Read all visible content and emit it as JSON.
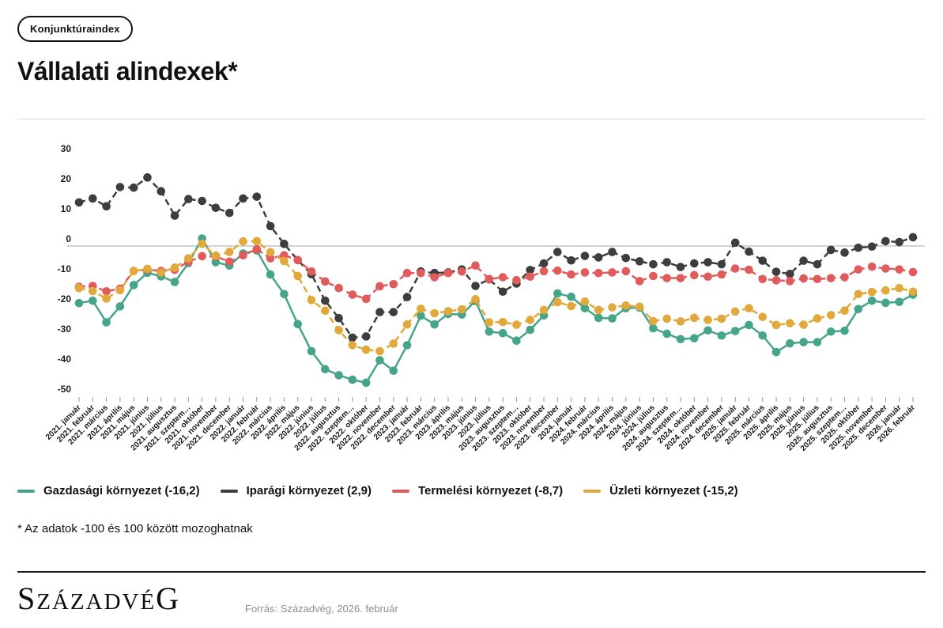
{
  "badge": {
    "label": "Konjunktúraindex"
  },
  "header": {
    "title": "Vállalati alindexek*"
  },
  "footnote": "* Az adatok -100 és 100 között mozoghatnak",
  "footer": {
    "logo_first": "S",
    "logo_mid": "ZÁZADVÉ",
    "logo_last": "G",
    "source": "Forrás: Századvég, 2026. február"
  },
  "colors": {
    "zero_line": "#b8b8b8",
    "tick_mark": "#999999",
    "axis_text": "#1a1a1a"
  },
  "chart_data": {
    "type": "line",
    "title": "Vállalati alindexek*",
    "ylim": [
      -50,
      30
    ],
    "yticks": [
      30,
      20,
      10,
      0,
      -10,
      -20,
      -30,
      -40,
      -50
    ],
    "grid": "zero-line-only",
    "legend_position": "bottom",
    "x": [
      "2021. január",
      "2021. február",
      "2021. március",
      "2021. április",
      "2021. május",
      "2021. június",
      "2021. július",
      "2021. augusztus",
      "2021. szeptem…",
      "2021. október",
      "2021. november",
      "2021. december",
      "2022. január",
      "2022. február",
      "2022. március",
      "2022. április",
      "2022. május",
      "2022. június",
      "2022. július",
      "2022. augusztus",
      "2022. szeptem…",
      "2022. október",
      "2022. november",
      "2022. december",
      "2023. január",
      "2023. február",
      "2023. március",
      "2023. április",
      "2023. május",
      "2023. június",
      "2023. július",
      "2023. augusztus",
      "2023. szeptem…",
      "2023. október",
      "2023. november",
      "2023. december",
      "2024. január",
      "2024. február",
      "2024. március",
      "2024. április",
      "2024. május",
      "2024. június",
      "2024. július",
      "2024. augusztus",
      "2024. szeptem…",
      "2024. október",
      "2024. november",
      "2024. december",
      "2025. január",
      "2025. február",
      "2025. március",
      "2025. április",
      "2025. május",
      "2025. június",
      "2025. július",
      "2025. augusztus",
      "2025. szeptem…",
      "2025. október",
      "2025. november",
      "2025. december",
      "2026. január",
      "2026. február"
    ],
    "series": [
      {
        "name": "Gazdasági környezet (-16,2)",
        "slug": "gazdasagi-kornyezet",
        "color": "#45A489",
        "dash": false,
        "values": [
          -19,
          -18.2,
          -25.4,
          -20.1,
          -13,
          -8.9,
          -10.1,
          -12,
          -5.7,
          2.5,
          -5.4,
          -6.5,
          -2.5,
          -1.5,
          -9.5,
          -16,
          -26,
          -35,
          -41,
          -43,
          -44.5,
          -45.5,
          -38,
          -41.5,
          -33,
          -23.2,
          -26.1,
          -22.6,
          -22.8,
          -18.3,
          -28.5,
          -29,
          -31.5,
          -27.9,
          -23.1,
          -15.8,
          -16.9,
          -20.7,
          -23.9,
          -24.1,
          -20.7,
          -20.5,
          -27.4,
          -29.2,
          -31,
          -30.7,
          -28.1,
          -29.8,
          -28.3,
          -26.3,
          -29.8,
          -35.3,
          -32.4,
          -32,
          -32,
          -28.5,
          -28.2,
          -21,
          -18.2,
          -18.9,
          -18.6,
          -16.2
        ]
      },
      {
        "name": "Iparági környezet (2,9)",
        "slug": "iparagi-kornyezet",
        "color": "#3D3D3D",
        "dash": true,
        "values": [
          14.5,
          15.8,
          13.2,
          19.6,
          19.4,
          22.8,
          18.2,
          10.1,
          15.6,
          15,
          12.7,
          11,
          15.8,
          16.4,
          6.6,
          0.7,
          -4.7,
          -9.4,
          -18.2,
          -24,
          -30.5,
          -30.1,
          -22,
          -22,
          -17,
          -8.5,
          -9,
          -8.8,
          -7.8,
          -13.3,
          -11.1,
          -15.2,
          -12.5,
          -8,
          -5.8,
          -2,
          -4.8,
          -3.3,
          -3.8,
          -2,
          -4,
          -5.1,
          -6.1,
          -5.4,
          -7,
          -5.8,
          -5.4,
          -6.1,
          1.1,
          -1.9,
          -4.9,
          -8.6,
          -9.3,
          -4.9,
          -6.1,
          -1.3,
          -2.2,
          -0.6,
          -0.2,
          1.6,
          1.3,
          2.9
        ]
      },
      {
        "name": "Termelési környezet (-8,7)",
        "slug": "termelesi-kornyezet",
        "color": "#E05C5C",
        "dash": true,
        "values": [
          -13.6,
          -13.3,
          -15.1,
          -14.2,
          -8.3,
          -7.9,
          -8.3,
          -7.9,
          -5.2,
          -3.4,
          -3.5,
          -5.2,
          -3.1,
          -1.1,
          -4.1,
          -3.1,
          -4.7,
          -8.5,
          -11.8,
          -14,
          -16.2,
          -17.6,
          -13.4,
          -12.7,
          -9,
          -9,
          -10.4,
          -9,
          -8.5,
          -6.5,
          -11,
          -10.4,
          -11.4,
          -10.2,
          -8.4,
          -8.2,
          -9.5,
          -8.8,
          -9,
          -8.8,
          -8.4,
          -11.7,
          -10,
          -10.7,
          -10.7,
          -9.7,
          -10.2,
          -9.5,
          -7.5,
          -7.9,
          -11,
          -11.4,
          -11.7,
          -10.8,
          -11,
          -10.7,
          -10.4,
          -7.8,
          -6.9,
          -7.5,
          -7.8,
          -8.7
        ]
      },
      {
        "name": "Üzleti környezet (-15,2)",
        "slug": "uzleti-kornyezet",
        "color": "#E1A93B",
        "dash": true,
        "values": [
          -14,
          -15,
          -17.5,
          -14.7,
          -8.3,
          -7.6,
          -8.8,
          -7.2,
          -4.1,
          0.7,
          -3.2,
          -2,
          1.5,
          1.6,
          -2.1,
          -5,
          -10,
          -18,
          -21.5,
          -28,
          -33,
          -34.5,
          -35,
          -32.5,
          -26.1,
          -20.9,
          -22.4,
          -21.7,
          -21.1,
          -17.7,
          -25.4,
          -25.3,
          -26.2,
          -24.6,
          -21.3,
          -18.7,
          -20,
          -18.5,
          -21.3,
          -20.4,
          -19.8,
          -20.2,
          -25,
          -24.2,
          -25.1,
          -23.9,
          -24.6,
          -24.2,
          -21.8,
          -20.7,
          -23.6,
          -26.3,
          -25.7,
          -26.2,
          -24.1,
          -23,
          -21.5,
          -16,
          -15.3,
          -14.8,
          -14,
          -15.2
        ]
      }
    ]
  }
}
